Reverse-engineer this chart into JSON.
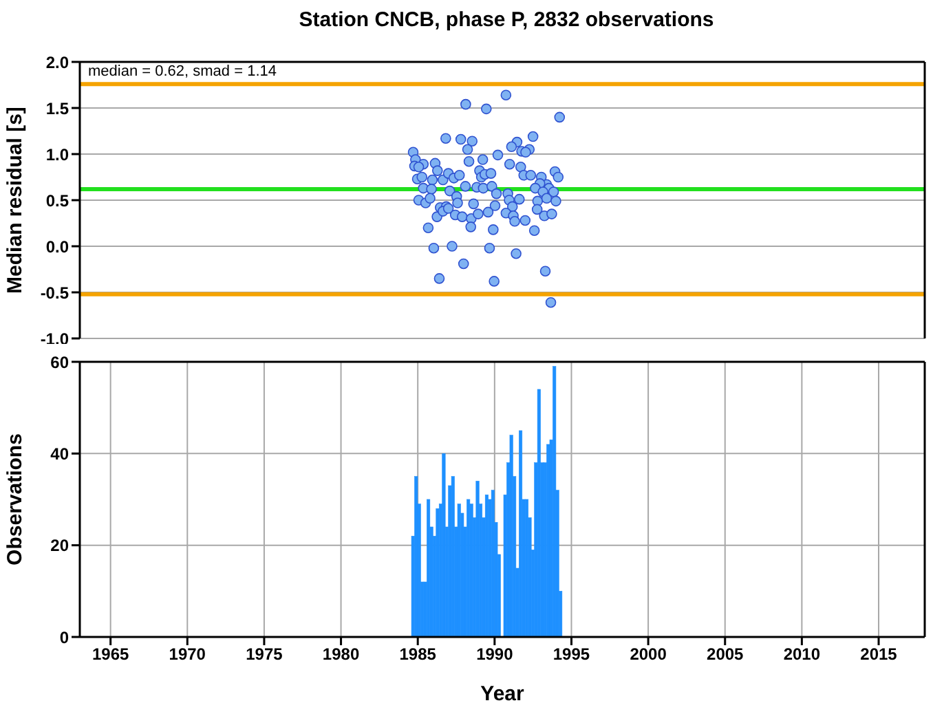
{
  "chart_data": [
    {
      "type": "scatter",
      "title": "Station CNCB, phase P, 2832 observations",
      "ylabel": "Median residual [s]",
      "annotations": [
        "median = 0.62, smad = 1.14"
      ],
      "color": "#7fb2f2",
      "marker": "circle",
      "grid": true,
      "tick_labels": "y",
      "xlim": [
        1963,
        2018
      ],
      "xticks": [
        1965,
        1970,
        1975,
        1980,
        1985,
        1990,
        1995,
        2000,
        2005,
        2010,
        2015
      ],
      "ylim": [
        -1,
        2
      ],
      "yticks": [
        {
          "value": -1,
          "label": "-1.0"
        },
        {
          "value": -0.5,
          "label": "-0.5"
        },
        {
          "value": 0,
          "label": "0.0"
        },
        {
          "value": 0.5,
          "label": "0.5"
        },
        {
          "value": 1,
          "label": "1.0"
        },
        {
          "value": 1.5,
          "label": "1.5"
        },
        {
          "value": 2,
          "label": "2.0"
        }
      ],
      "ref_lines": [
        {
          "axis": "y",
          "value": 0.62,
          "label": null,
          "color": "#22e01e"
        },
        {
          "axis": "y",
          "value": 1.76,
          "label": null,
          "color": "#f5a300"
        },
        {
          "axis": "y",
          "value": -0.52,
          "label": null,
          "color": "#f5a300"
        }
      ],
      "x": [
        1988.12,
        1990.74,
        1989.46,
        1994.23,
        1986.82,
        1987.8,
        1988.54,
        1988.24,
        1984.7,
        1991.46,
        1991.1,
        1992.5,
        1992.26,
        1991.76,
        1992.02,
        1984.85,
        1984.79,
        1985.36,
        1985.06,
        1986.13,
        1986.28,
        1988.33,
        1989.23,
        1990.21,
        1990.98,
        1991.7,
        1991.9,
        1992.35,
        1993.93,
        1994.14,
        1984.97,
        1985.27,
        1985.95,
        1986.64,
        1986.99,
        1987.35,
        1987.71,
        1989.02,
        1989.14,
        1989.37,
        1989.76,
        1993.04,
        1993.39,
        1993.54,
        1992.95,
        1985.36,
        1985.89,
        1987.08,
        1988.1,
        1988.84,
        1989.26,
        1989.82,
        1990.12,
        1990.86,
        1992.65,
        1993.15,
        1993.84,
        1987.53,
        1985.06,
        1985.51,
        1985.8,
        1986.46,
        1986.85,
        1987.59,
        1988.63,
        1990.03,
        1990.95,
        1991.16,
        1991.61,
        1992.8,
        1993.39,
        1993.99,
        1986.25,
        1986.64,
        1986.99,
        1987.44,
        1987.89,
        1988.48,
        1988.93,
        1989.58,
        1990.74,
        1991.22,
        1991.31,
        1991.99,
        1992.77,
        1993.24,
        1993.72,
        1985.68,
        1988.45,
        1989.91,
        1992.59,
        1986.04,
        1987.23,
        1989.67,
        1991.4,
        1987.98,
        1993.3,
        1986.4,
        1989.97,
        1993.66
      ],
      "values": [
        1.54,
        1.64,
        1.49,
        1.4,
        1.17,
        1.16,
        1.14,
        1.05,
        1.02,
        1.13,
        1.08,
        1.19,
        1.05,
        1.03,
        1.02,
        0.94,
        0.87,
        0.89,
        0.86,
        0.9,
        0.82,
        0.92,
        0.94,
        0.99,
        0.89,
        0.86,
        0.77,
        0.77,
        0.81,
        0.75,
        0.73,
        0.75,
        0.72,
        0.72,
        0.79,
        0.74,
        0.77,
        0.82,
        0.75,
        0.78,
        0.79,
        0.75,
        0.67,
        0.63,
        0.68,
        0.63,
        0.62,
        0.6,
        0.65,
        0.64,
        0.63,
        0.65,
        0.57,
        0.57,
        0.63,
        0.59,
        0.59,
        0.54,
        0.5,
        0.47,
        0.52,
        0.42,
        0.43,
        0.47,
        0.46,
        0.44,
        0.5,
        0.43,
        0.51,
        0.49,
        0.52,
        0.49,
        0.32,
        0.38,
        0.41,
        0.34,
        0.32,
        0.3,
        0.35,
        0.37,
        0.36,
        0.33,
        0.27,
        0.28,
        0.4,
        0.33,
        0.35,
        0.2,
        0.21,
        0.18,
        0.17,
        -0.02,
        0,
        -0.02,
        -0.08,
        -0.19,
        -0.27,
        -0.35,
        -0.38,
        -0.61
      ]
    },
    {
      "type": "histogram",
      "xlabel": "Year",
      "ylabel": "Observations",
      "color": "#1e90ff",
      "grid": true,
      "xlim": [
        1963,
        2018
      ],
      "xticks": [
        1965,
        1970,
        1975,
        1980,
        1985,
        1990,
        1995,
        2000,
        2005,
        2010,
        2015
      ],
      "ylim": [
        0,
        60
      ],
      "yticks": [
        0,
        20,
        40,
        60
      ],
      "bins": [
        1984.6,
        1984.8,
        1985,
        1985.2,
        1985.4,
        1985.6,
        1985.8,
        1986,
        1986.2,
        1986.4,
        1986.6,
        1986.8,
        1987,
        1987.2,
        1987.4,
        1987.6,
        1987.8,
        1988,
        1988.2,
        1988.4,
        1988.6,
        1988.8,
        1989,
        1989.2,
        1989.4,
        1989.6,
        1989.8,
        1990,
        1990.2,
        1990.4,
        1990.6,
        1990.8,
        1991,
        1991.2,
        1991.4,
        1991.6,
        1991.8,
        1992,
        1992.2,
        1992.4,
        1992.6,
        1992.8,
        1993,
        1993.2,
        1993.4,
        1993.6,
        1993.8,
        1994,
        1994.2,
        1994.4
      ],
      "values": [
        22,
        35,
        29,
        12,
        12,
        30,
        24,
        22,
        28,
        29,
        40,
        24,
        33,
        35,
        24,
        29,
        27,
        24,
        30,
        29,
        26,
        34,
        29,
        26,
        31,
        30,
        32,
        25,
        18,
        0,
        31,
        38,
        44,
        35,
        15,
        45,
        30,
        30,
        26,
        19,
        38,
        54,
        38,
        38,
        42,
        43,
        59,
        32,
        10
      ]
    }
  ]
}
